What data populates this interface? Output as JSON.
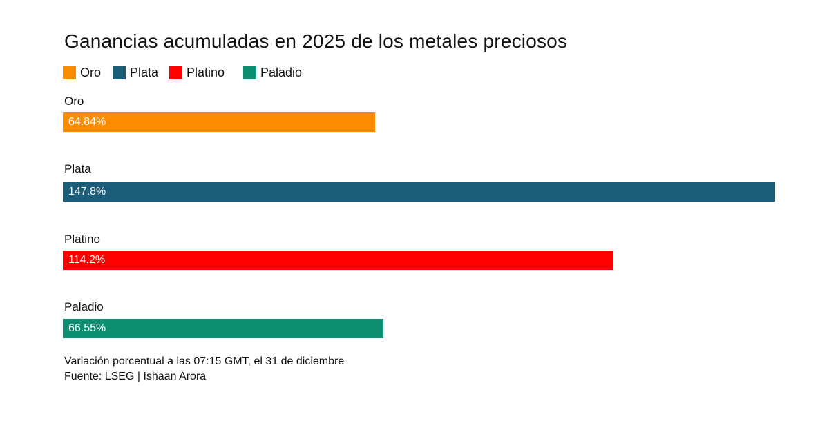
{
  "chart_data": {
    "type": "bar",
    "orientation": "horizontal",
    "title": "Ganancias acumuladas en 2025 de los metales preciosos",
    "categories": [
      "Oro",
      "Plata",
      "Platino",
      "Paladio"
    ],
    "values": [
      64.84,
      147.8,
      114.2,
      66.55
    ],
    "value_labels": [
      "64.84%",
      "147.8%",
      "114.2%",
      "66.55%"
    ],
    "colors": [
      "#fb8c00",
      "#1b5c78",
      "#ff0000",
      "#0e8f72"
    ],
    "legend": [
      "Oro",
      "Plata",
      "Platino",
      "Paladio"
    ],
    "legend_position": "top-left",
    "xlim": [
      0,
      147.8
    ],
    "xlabel": "",
    "ylabel": "",
    "grid": false
  },
  "footnote": {
    "line1": "Variación porcentual a las 07:15 GMT, el 31 de diciembre",
    "line2": "Fuente: LSEG | Ishaan Arora"
  }
}
